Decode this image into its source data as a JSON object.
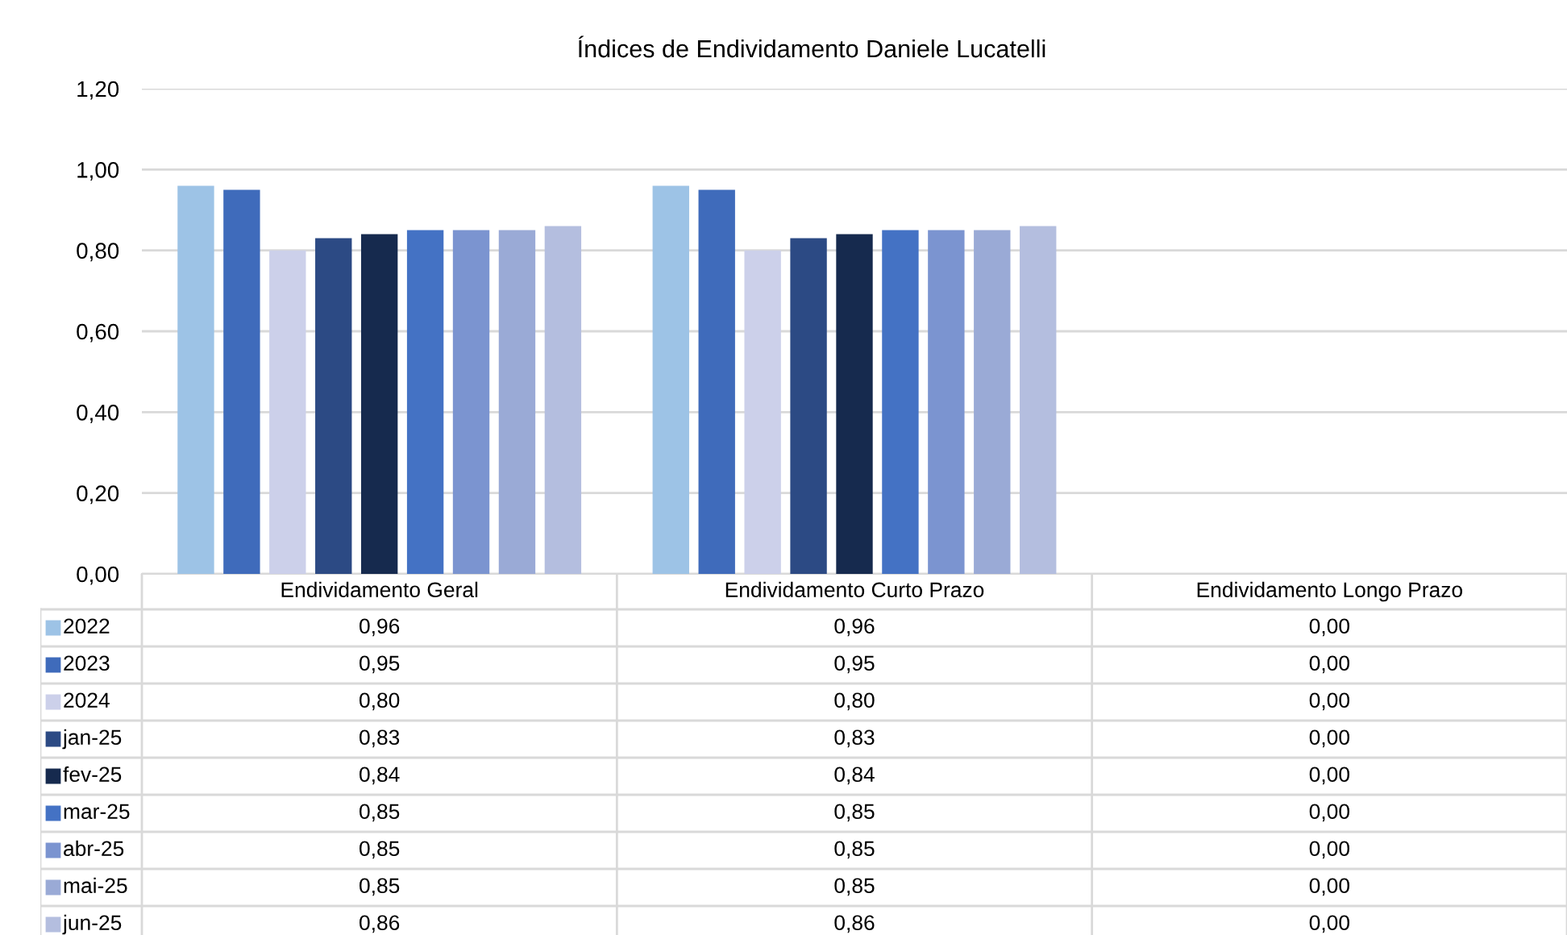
{
  "chart_data": {
    "type": "bar",
    "title": "Índices de Endividamento Daniele Lucatelli",
    "categories": [
      "Endividamento Geral",
      "Endividamento Curto Prazo",
      "Endividamento Longo Prazo"
    ],
    "series": [
      {
        "name": "2022",
        "color": "#9dc3e6",
        "values": [
          0.96,
          0.96,
          0.0
        ],
        "value_labels": [
          "0,96",
          "0,96",
          "0,00"
        ]
      },
      {
        "name": "2023",
        "color": "#3f6bbb",
        "values": [
          0.95,
          0.95,
          0.0
        ],
        "value_labels": [
          "0,95",
          "0,95",
          "0,00"
        ]
      },
      {
        "name": "2024",
        "color": "#ccd0ea",
        "values": [
          0.8,
          0.8,
          0.0
        ],
        "value_labels": [
          "0,80",
          "0,80",
          "0,00"
        ]
      },
      {
        "name": "jan-25",
        "color": "#2c4a84",
        "values": [
          0.83,
          0.83,
          0.0
        ],
        "value_labels": [
          "0,83",
          "0,83",
          "0,00"
        ]
      },
      {
        "name": "fev-25",
        "color": "#162a4e",
        "values": [
          0.84,
          0.84,
          0.0
        ],
        "value_labels": [
          "0,84",
          "0,84",
          "0,00"
        ]
      },
      {
        "name": "mar-25",
        "color": "#4472c4",
        "values": [
          0.85,
          0.85,
          0.0
        ],
        "value_labels": [
          "0,85",
          "0,85",
          "0,00"
        ]
      },
      {
        "name": "abr-25",
        "color": "#7b94d0",
        "values": [
          0.85,
          0.85,
          0.0
        ],
        "value_labels": [
          "0,85",
          "0,85",
          "0,00"
        ]
      },
      {
        "name": "mai-25",
        "color": "#9aaad6",
        "values": [
          0.85,
          0.85,
          0.0
        ],
        "value_labels": [
          "0,85",
          "0,85",
          "0,00"
        ]
      },
      {
        "name": "jun-25",
        "color": "#b4bedf",
        "values": [
          0.86,
          0.86,
          0.0
        ],
        "value_labels": [
          "0,86",
          "0,86",
          "0,00"
        ]
      }
    ],
    "ylim": [
      0,
      1.2
    ],
    "yticks": [
      {
        "value": 0,
        "label": "0,00"
      },
      {
        "value": 0.2,
        "label": "0,20"
      },
      {
        "value": 0.4,
        "label": "0,40"
      },
      {
        "value": 0.6,
        "label": "0,60"
      },
      {
        "value": 0.8,
        "label": "0,80"
      },
      {
        "value": 1.0,
        "label": "1,00"
      },
      {
        "value": 1.2,
        "label": "1,20"
      }
    ],
    "grid": "y",
    "legend": "bottom left"
  }
}
